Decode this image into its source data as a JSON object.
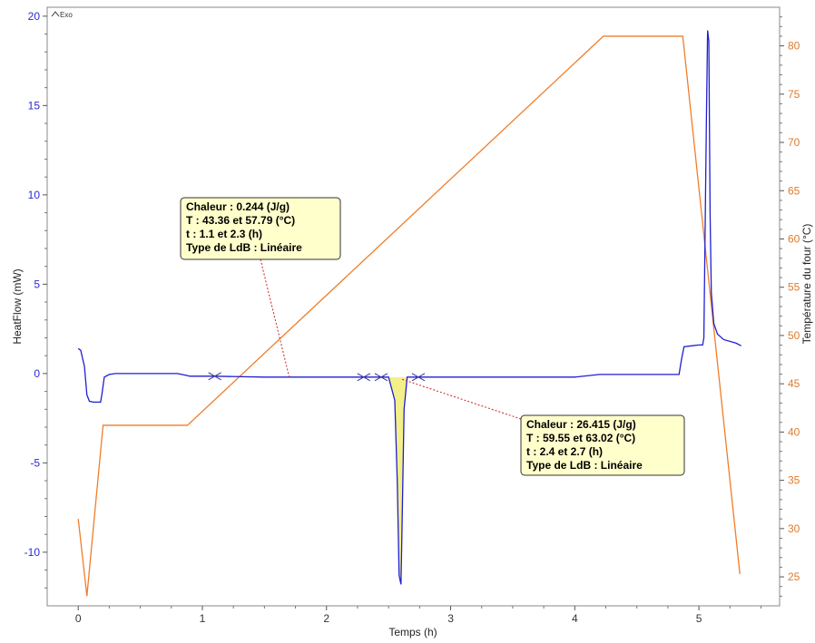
{
  "chart_data": {
    "type": "line",
    "title": "",
    "exo_label": "Exo",
    "xlabel": "Temps (h)",
    "ylabel": "HeatFlow (mW)",
    "y2label": "Température du four (°C)",
    "xlim": [
      -0.25,
      5.65
    ],
    "ylim": [
      -13,
      20.5
    ],
    "y2lim": [
      22,
      84
    ],
    "xticks": [
      0,
      1,
      2,
      3,
      4,
      5
    ],
    "yticks": [
      -10,
      -5,
      0,
      5,
      10,
      15,
      20
    ],
    "y2ticks": [
      25,
      30,
      35,
      40,
      45,
      50,
      55,
      60,
      65,
      70,
      75,
      80
    ],
    "colors": {
      "heatflow": "#1f1fd1",
      "temperature": "#f07d2a",
      "peak_fill": "#f3f08a",
      "box_fill": "#ffffcc",
      "leader": "#cc2222"
    },
    "series": [
      {
        "name": "HeatFlow (mW)",
        "axis": "left",
        "x": [
          0.0,
          0.02,
          0.05,
          0.07,
          0.09,
          0.12,
          0.18,
          0.19,
          0.21,
          0.25,
          0.3,
          0.4,
          0.8,
          0.87,
          0.9,
          1.0,
          1.1,
          1.5,
          2.0,
          2.3,
          2.5,
          2.55,
          2.57,
          2.585,
          2.6,
          2.61,
          2.625,
          2.65,
          2.7,
          3.0,
          4.0,
          4.2,
          4.5,
          4.84,
          4.86,
          4.88,
          5.0,
          5.03,
          5.04,
          5.06,
          5.07,
          5.08,
          5.09,
          5.1,
          5.12,
          5.15,
          5.2,
          5.3,
          5.34
        ],
        "y": [
          1.4,
          1.3,
          0.4,
          -1.2,
          -1.55,
          -1.6,
          -1.6,
          -1.2,
          -0.2,
          -0.05,
          0.0,
          0.0,
          0.0,
          -0.1,
          -0.15,
          -0.15,
          -0.15,
          -0.2,
          -0.2,
          -0.2,
          -0.2,
          -1.5,
          -6.0,
          -11.3,
          -11.8,
          -8.0,
          -2.0,
          -0.2,
          -0.2,
          -0.2,
          -0.2,
          -0.05,
          -0.05,
          -0.05,
          0.8,
          1.5,
          1.6,
          1.6,
          2.0,
          14.0,
          19.2,
          18.6,
          9.0,
          4.5,
          2.8,
          2.2,
          1.9,
          1.7,
          1.55
        ]
      },
      {
        "name": "Température du four (°C)",
        "axis": "right",
        "x": [
          0.0,
          0.07,
          0.2,
          0.88,
          4.23,
          4.87,
          5.33
        ],
        "y": [
          31.0,
          23.0,
          40.7,
          40.7,
          81.0,
          81.0,
          25.3
        ]
      }
    ],
    "markers_x": [
      1.1,
      2.3,
      2.44,
      2.74
    ],
    "annotations": [
      {
        "peak_x": 1.7,
        "lines": [
          "Chaleur :  0.244 (J/g)",
          "T : 43.36 et 57.79 (°C)",
          "t : 1.1 et 2.3 (h)",
          "Type de LdB :  Linéaire"
        ]
      },
      {
        "peak_x": 2.6,
        "lines": [
          "Chaleur :  26.415 (J/g)",
          "T : 59.55 et 63.02 (°C)",
          "t : 2.4 et 2.7 (h)",
          "Type de LdB :  Linéaire"
        ]
      }
    ]
  }
}
